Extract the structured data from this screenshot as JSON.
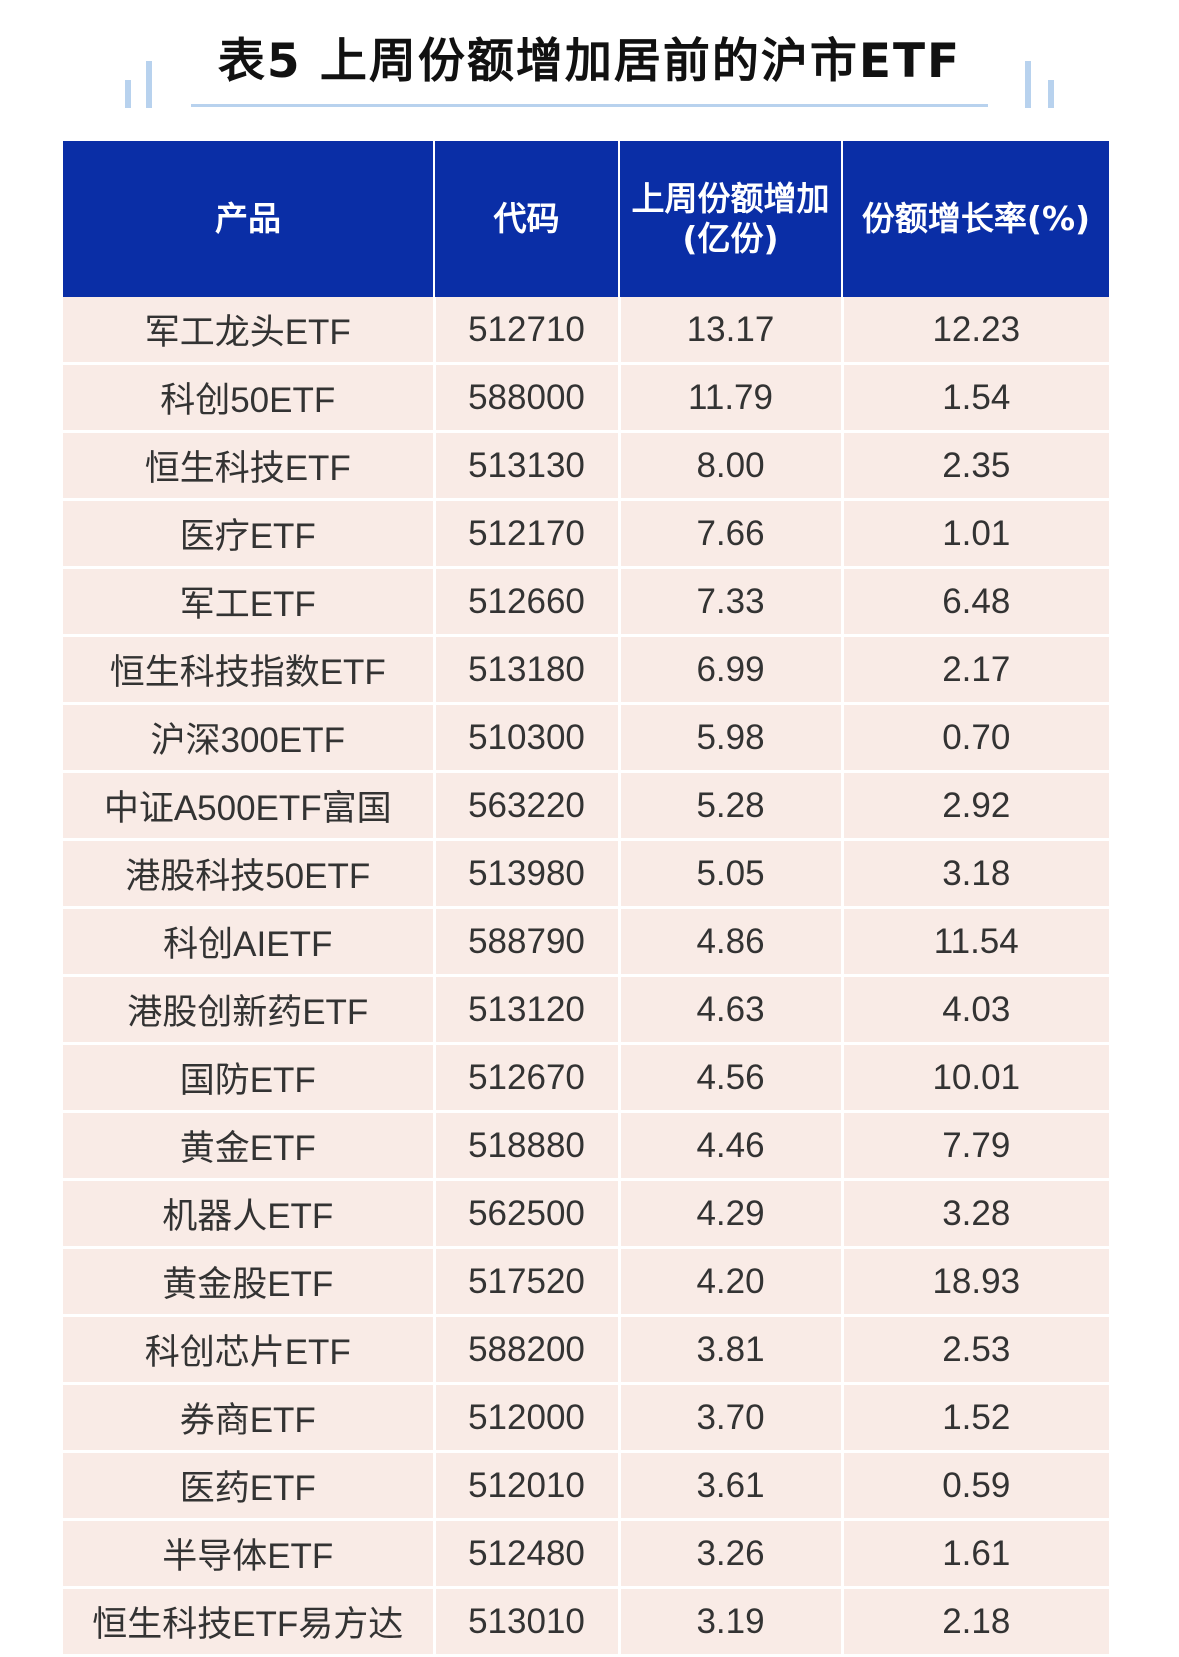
{
  "title": "表5 上周份额增加居前的沪市ETF",
  "colors": {
    "header_bg": "#0a2ea6",
    "row_bg": "#f9ebe6",
    "accent_line": "#b8d2ee"
  },
  "table": {
    "headers": [
      "产品",
      "代码",
      "上周份额增加\n(亿份)",
      "份额增长率(%)"
    ],
    "rows": [
      [
        "军工龙头ETF",
        "512710",
        "13.17",
        "12.23"
      ],
      [
        "科创50ETF",
        "588000",
        "11.79",
        "1.54"
      ],
      [
        "恒生科技ETF",
        "513130",
        "8.00",
        "2.35"
      ],
      [
        "医疗ETF",
        "512170",
        "7.66",
        "1.01"
      ],
      [
        "军工ETF",
        "512660",
        "7.33",
        "6.48"
      ],
      [
        "恒生科技指数ETF",
        "513180",
        "6.99",
        "2.17"
      ],
      [
        "沪深300ETF",
        "510300",
        "5.98",
        "0.70"
      ],
      [
        "中证A500ETF富国",
        "563220",
        "5.28",
        "2.92"
      ],
      [
        "港股科技50ETF",
        "513980",
        "5.05",
        "3.18"
      ],
      [
        "科创AIETF",
        "588790",
        "4.86",
        "11.54"
      ],
      [
        "港股创新药ETF",
        "513120",
        "4.63",
        "4.03"
      ],
      [
        "国防ETF",
        "512670",
        "4.56",
        "10.01"
      ],
      [
        "黄金ETF",
        "518880",
        "4.46",
        "7.79"
      ],
      [
        "机器人ETF",
        "562500",
        "4.29",
        "3.28"
      ],
      [
        "黄金股ETF",
        "517520",
        "4.20",
        "18.93"
      ],
      [
        "科创芯片ETF",
        "588200",
        "3.81",
        "2.53"
      ],
      [
        "券商ETF",
        "512000",
        "3.70",
        "1.52"
      ],
      [
        "医药ETF",
        "512010",
        "3.61",
        "0.59"
      ],
      [
        "半导体ETF",
        "512480",
        "3.26",
        "1.61"
      ],
      [
        "恒生科技ETF易方达",
        "513010",
        "3.19",
        "2.18"
      ]
    ]
  }
}
